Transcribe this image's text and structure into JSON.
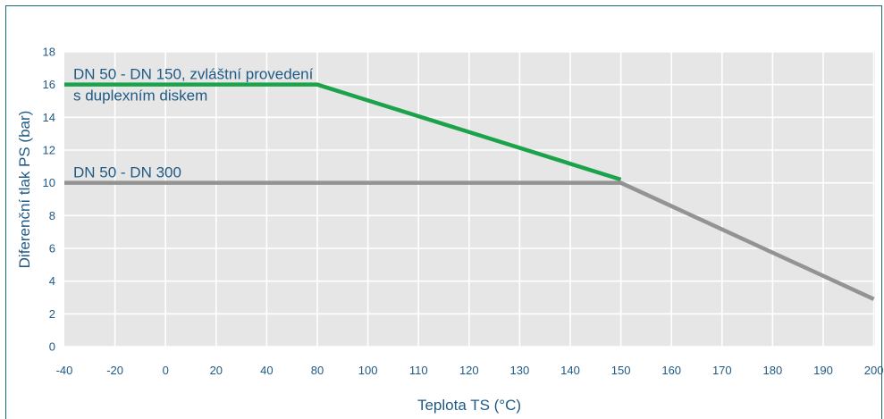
{
  "chart_data": {
    "type": "line",
    "xlabel": "Teplota TS (°C)",
    "ylabel": "Diferenční tlak PS (bar)",
    "ylim": [
      0,
      18
    ],
    "yticks": [
      0,
      2,
      4,
      6,
      8,
      10,
      12,
      14,
      16,
      18
    ],
    "xticks": [
      "-40",
      "-20",
      "0",
      "20",
      "40",
      "80",
      "100",
      "110",
      "120",
      "130",
      "140",
      "150",
      "160",
      "170",
      "180",
      "190",
      "200"
    ],
    "grid": true,
    "colors": {
      "plot_bg": "#e6e6e6",
      "grid": "#ffffff",
      "text": "#1f5a86",
      "frame": "#1d6c6c"
    },
    "series": [
      {
        "label_lines": [
          "DN 50 - DN 150, zvláštní provedení",
          "s duplexním diskem"
        ],
        "color": "#1aa34a",
        "points": [
          {
            "x": "-40",
            "y": 16
          },
          {
            "x": "80",
            "y": 16
          },
          {
            "x": "150",
            "y": 10.2
          }
        ]
      },
      {
        "label_lines": [
          "DN 50 - DN 300"
        ],
        "color": "#939393",
        "points": [
          {
            "x": "-40",
            "y": 10
          },
          {
            "x": "150",
            "y": 10
          },
          {
            "x": "200",
            "y": 2.9
          }
        ]
      }
    ]
  }
}
